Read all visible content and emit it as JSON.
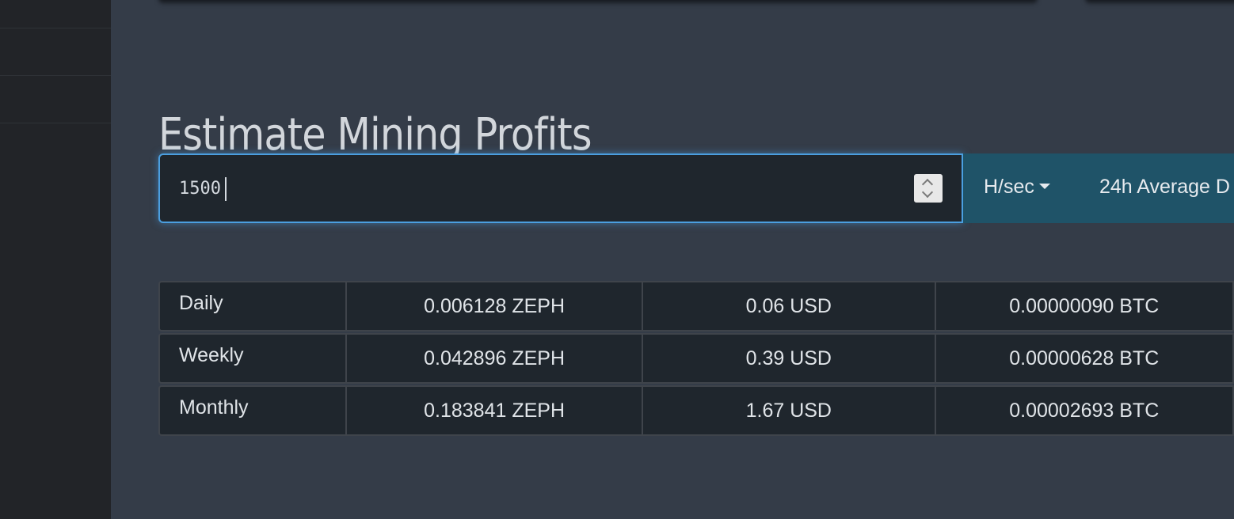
{
  "title": "Estimate Mining Profits",
  "hashrate": {
    "value": "1500",
    "unit": "H/sec",
    "average_label": "24h Average D"
  },
  "profits": [
    {
      "period": "Daily",
      "zeph": "0.006128 ZEPH",
      "usd": "0.06 USD",
      "btc": "0.00000090 BTC"
    },
    {
      "period": "Weekly",
      "zeph": "0.042896 ZEPH",
      "usd": "0.39 USD",
      "btc": "0.00000628 BTC"
    },
    {
      "period": "Monthly",
      "zeph": "0.183841 ZEPH",
      "usd": "1.67 USD",
      "btc": "0.00002693 BTC"
    }
  ],
  "icons": {
    "spinner": "number-spinner-icon",
    "dropdown": "caret-down-icon"
  },
  "colors": {
    "page_background": "#343c48",
    "sidebar_background": "#222428",
    "input_focus_border": "#4b9fe0",
    "addon_background": "#1f5368",
    "table_cell_background": "#1f262d"
  }
}
